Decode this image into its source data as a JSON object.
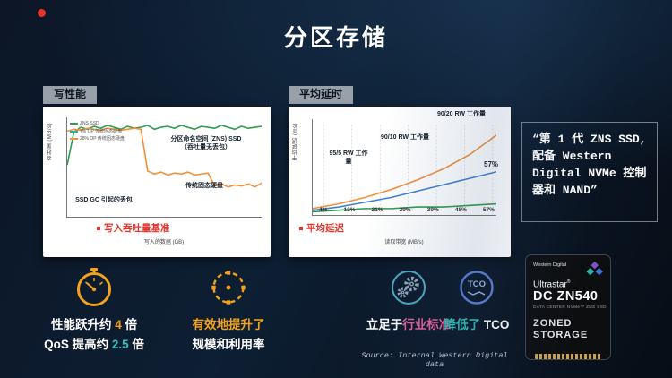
{
  "slide": {
    "title": "分区存储",
    "source": "Source: Internal Western Digital data"
  },
  "panels": {
    "left_tag": "写性能",
    "right_tag": "平均延时"
  },
  "quote": {
    "text": "“第 1 代 ZNS SSD, 配备 Western Digital NVMe 控制器和 NAND”"
  },
  "chart_data": [
    {
      "type": "line",
      "title": "写性能",
      "xlabel": "写入的数据 (GB)",
      "ylabel": "吞吐量 (MB/s)",
      "ylim": [
        0,
        100
      ],
      "grid": false,
      "legend_position": "top-left",
      "legend": [
        {
          "label": "ZNS SSD",
          "color": "#2e9e4f"
        },
        {
          "label": "7% OP 传统固态硬盘",
          "color": "#21b6b0"
        },
        {
          "label": "28% OP 传统固态硬盘",
          "color": "#f2903a"
        }
      ],
      "series": [
        {
          "name": "分区命名空间 (ZNS) SSD",
          "color": "#2e9e4f",
          "values": [
            52,
            85,
            90,
            88,
            91,
            89,
            92,
            90,
            88,
            91,
            89,
            90,
            92,
            88,
            90,
            91,
            89,
            92,
            90,
            88,
            91,
            90,
            89,
            92,
            90,
            88,
            91,
            89,
            90,
            91
          ]
        },
        {
          "name": "传统固态硬盘",
          "color": "#f2903a",
          "values": [
            86,
            88,
            87,
            89,
            88,
            87,
            89,
            88,
            87,
            88,
            89,
            88,
            46,
            43,
            45,
            42,
            44,
            43,
            45,
            42,
            43,
            44,
            31,
            33,
            30,
            32,
            31,
            33,
            30,
            34
          ]
        }
      ],
      "annotations": {
        "zns1": "分区命名空间 (ZNS) SSD",
        "zns2": "（吞吐量无丢包）",
        "trad": "传统固态硬盘",
        "gc": "SSD GC 引起的丢包"
      },
      "caption": "写入吞吐量基准"
    },
    {
      "type": "line",
      "title": "平均延时",
      "xlabel": "读取带宽 (MB/s)",
      "ylabel": "平均延迟 (ms)",
      "ylim": [
        0,
        60
      ],
      "vgrid": true,
      "xticks": [
        "4%",
        "12%",
        "21%",
        "29%",
        "39%",
        "48%",
        "57%"
      ],
      "series": [
        {
          "name": "90/20 RW 工作量",
          "color": "#f2903a",
          "values": [
            4,
            7,
            11,
            16,
            22,
            29,
            38,
            50
          ]
        },
        {
          "name": "90/10 RW 工作量",
          "color": "#3f7fd4",
          "values": [
            3,
            5,
            8,
            11,
            15,
            19,
            23,
            27
          ]
        },
        {
          "name": "95/5 RW 工作量",
          "color": "#2e9e4f",
          "values": [
            2,
            3,
            4,
            4,
            5,
            5,
            6,
            7
          ]
        }
      ],
      "annotations": {
        "w9020": "90/20 RW 工作量",
        "w9010": "90/10 RW 工作量",
        "w955": "95/5 RW 工作量",
        "pct": "57%"
      },
      "caption": "平均延迟"
    }
  ],
  "benefits": [
    {
      "icon": "gauge-icon",
      "l1a": "性能跃升约 ",
      "l1b": "4",
      "l1c": " 倍",
      "l2a": "QoS 提高约 ",
      "l2b": "2.5",
      "l2c": " 倍"
    },
    {
      "icon": "dashed-target-icon",
      "l1": "有效地提升了",
      "l2": "规模和利用率"
    },
    {
      "icon": "gears-icon",
      "l1a": "立足于",
      "l1b": "行业标准"
    },
    {
      "icon": "tco-icon",
      "icon_label": "TCO",
      "l1a": "降低了 ",
      "l1b": "TCO"
    }
  ],
  "product": {
    "brand": "Western Digital",
    "family": "Ultrastar",
    "reg": "®",
    "model": "DC ZN540",
    "subtitle": "DATA CENTER NVMe™ ZNS SSD",
    "badge_line1": "ZONED",
    "badge_line2": "STORAGE"
  }
}
